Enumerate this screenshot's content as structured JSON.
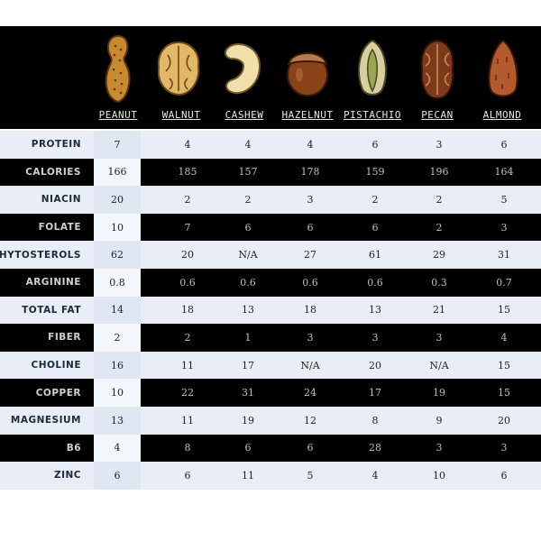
{
  "chart_data": {
    "type": "table",
    "columns": [
      "PEANUT",
      "WALNUT",
      "CASHEW",
      "HAZELNUT",
      "PISTACHIO",
      "PECAN",
      "ALMOND"
    ],
    "rows": [
      {
        "label": "PROTEIN",
        "values": [
          "7",
          "4",
          "4",
          "4",
          "6",
          "3",
          "6"
        ]
      },
      {
        "label": "CALORIES",
        "values": [
          "166",
          "185",
          "157",
          "178",
          "159",
          "196",
          "164"
        ]
      },
      {
        "label": "NIACIN",
        "values": [
          "20",
          "2",
          "2",
          "3",
          "2",
          "2",
          "5"
        ]
      },
      {
        "label": "FOLATE",
        "values": [
          "10",
          "7",
          "6",
          "6",
          "6",
          "2",
          "3"
        ]
      },
      {
        "label": "PHYTOSTEROLS",
        "values": [
          "62",
          "20",
          "N/A",
          "27",
          "61",
          "29",
          "31"
        ]
      },
      {
        "label": "ARGININE",
        "values": [
          "0.8",
          "0.6",
          "0.6",
          "0.6",
          "0.6",
          "0.3",
          "0.7"
        ]
      },
      {
        "label": "TOTAL FAT",
        "values": [
          "14",
          "18",
          "13",
          "18",
          "13",
          "21",
          "15"
        ]
      },
      {
        "label": "FIBER",
        "values": [
          "2",
          "2",
          "1",
          "3",
          "3",
          "3",
          "4"
        ]
      },
      {
        "label": "CHOLINE",
        "values": [
          "16",
          "11",
          "17",
          "N/A",
          "20",
          "N/A",
          "15"
        ]
      },
      {
        "label": "COPPER",
        "values": [
          "10",
          "22",
          "31",
          "24",
          "17",
          "19",
          "15"
        ]
      },
      {
        "label": "MAGNESIUM",
        "values": [
          "13",
          "11",
          "19",
          "12",
          "8",
          "9",
          "20"
        ]
      },
      {
        "label": "B6",
        "values": [
          "4",
          "8",
          "6",
          "6",
          "28",
          "3",
          "3"
        ]
      },
      {
        "label": "ZINC",
        "values": [
          "6",
          "6",
          "11",
          "5",
          "4",
          "10",
          "6"
        ]
      }
    ]
  },
  "colors": {
    "peanut": "#c88a2e",
    "walnut": "#e2b766",
    "cashew": "#f0deab",
    "hazelnut": "#8a4318",
    "pistachio": "#b8b47a",
    "pecan": "#7d3a1a",
    "almond": "#b35a2e"
  }
}
